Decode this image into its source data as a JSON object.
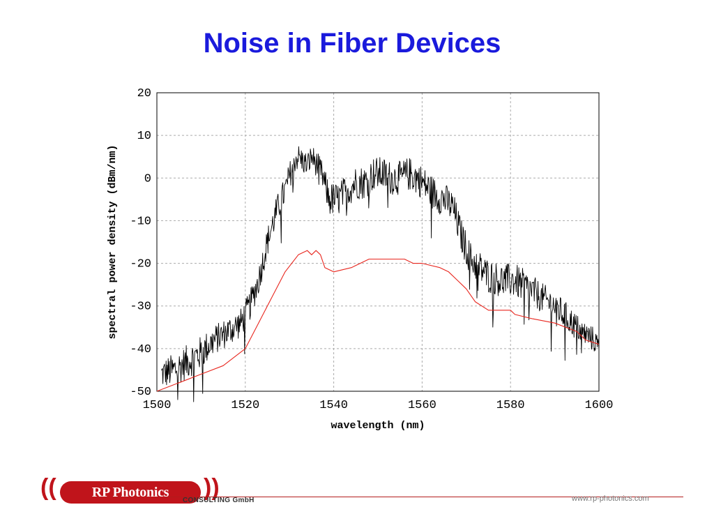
{
  "slide": {
    "title": "Noise in Fiber Devices"
  },
  "footer": {
    "logo_text": "RP Photonics",
    "consulting": "CONSULTING GmbH",
    "website": "www.rp-photonics.com"
  },
  "colors": {
    "title": "#1a1adc",
    "noise_trace": "#000000",
    "smooth_trace": "#e8261e",
    "brand": "#c0141b"
  },
  "chart_data": {
    "type": "line",
    "xlabel": "wavelength (nm)",
    "ylabel": "spectral power density (dBm/nm)",
    "xlim": [
      1500,
      1600
    ],
    "ylim": [
      -50,
      20
    ],
    "xticks": [
      1500,
      1520,
      1540,
      1560,
      1580,
      1600
    ],
    "yticks": [
      -50,
      -40,
      -30,
      -20,
      -10,
      0,
      10,
      20
    ],
    "grid": true,
    "legend": "none",
    "series": [
      {
        "color": "#000000",
        "style": "noisy",
        "x": [
          1501,
          1504,
          1507,
          1510,
          1513,
          1516,
          1519,
          1521,
          1523,
          1525,
          1527,
          1529,
          1531,
          1532,
          1533,
          1534,
          1535,
          1537,
          1539,
          1541,
          1543,
          1545,
          1547,
          1549,
          1551,
          1553,
          1555,
          1557,
          1559,
          1561,
          1563,
          1565,
          1567,
          1569,
          1571,
          1573,
          1575,
          1578,
          1581,
          1584,
          1587,
          1590,
          1593,
          1596,
          1599,
          1600
        ],
        "y": [
          -46,
          -45,
          -43,
          -41,
          -38,
          -36,
          -34,
          -30,
          -24,
          -15,
          -8,
          -3,
          4,
          5,
          4,
          3,
          5,
          2,
          -5,
          -5,
          -3,
          -1,
          -1,
          1,
          1,
          0,
          0,
          1,
          0,
          -2,
          -4,
          -5,
          -7,
          -14,
          -19,
          -21,
          -23,
          -24,
          -24,
          -26,
          -28,
          -30,
          -33,
          -36,
          -38,
          -40
        ],
        "noise_amplitude": [
          3.5,
          4,
          4,
          4,
          3.5,
          3.5,
          3.5,
          3.5,
          3.5,
          3.5,
          3.5,
          3.5,
          3,
          3,
          3,
          3,
          3,
          3,
          4,
          4,
          4,
          4,
          4,
          4,
          4,
          4,
          4,
          4,
          4,
          4,
          4,
          4,
          4,
          4,
          4,
          4,
          4,
          4,
          4,
          4,
          3.5,
          3.5,
          3.5,
          3,
          3,
          3
        ]
      },
      {
        "color": "#e8261e",
        "style": "smooth",
        "x": [
          1500,
          1505,
          1510,
          1515,
          1520,
          1523,
          1526,
          1529,
          1532,
          1534,
          1535,
          1536,
          1537,
          1538,
          1540,
          1544,
          1548,
          1552,
          1556,
          1558,
          1560,
          1564,
          1566,
          1568,
          1570,
          1572,
          1575,
          1580,
          1581,
          1585,
          1590,
          1595,
          1597,
          1600
        ],
        "y": [
          -50,
          -48,
          -46,
          -44,
          -40,
          -34,
          -28,
          -22,
          -18,
          -17,
          -18,
          -17,
          -18,
          -21,
          -22,
          -21,
          -19,
          -19,
          -19,
          -20,
          -20,
          -21,
          -22,
          -24,
          -26,
          -29,
          -31,
          -31,
          -32,
          -33,
          -34,
          -36,
          -38,
          -39
        ]
      }
    ]
  }
}
